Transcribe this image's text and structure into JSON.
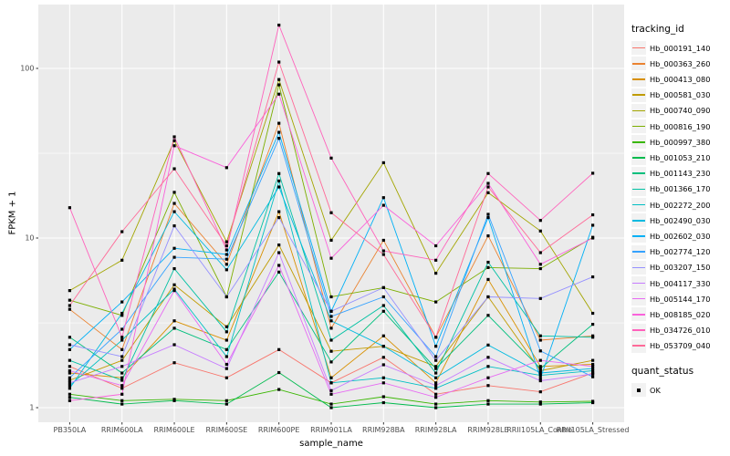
{
  "figure": {
    "ylabel": "FPKM + 1",
    "xlabel": "sample_name"
  },
  "legend": {
    "tracking_title": "tracking_id",
    "quant_title": "quant_status",
    "quant_ok_label": "OK",
    "key_bg": "#F2F2F2"
  },
  "chart_data": {
    "type": "line",
    "title": "",
    "xlabel": "sample_name",
    "ylabel": "FPKM + 1",
    "y_scale": "log10",
    "y_ticks": [
      1,
      10,
      100
    ],
    "y_minor": [
      3.16,
      31.6
    ],
    "ylim": [
      0.85,
      235
    ],
    "grid": "white-on-gray",
    "panel_bg": "#EBEBEB",
    "grid_color": "#FFFFFF",
    "point_color": "#000000",
    "point_shape": "square",
    "legend_position": "right",
    "legend_title": "tracking_id",
    "quant_status": {
      "title": "quant_status",
      "value": "OK"
    },
    "categories": [
      "PB350LA",
      "RRIM600LA",
      "RRIM600LE",
      "RRIM600SE",
      "RRIM600PE",
      "RRIM901LA",
      "RRIM928BA",
      "RRIM928LA",
      "RRIM928LE",
      "RRII105LA_Control",
      "RRII105LA_Stressed"
    ],
    "series": [
      {
        "name": "Hb_000191_140",
        "color": "#F8766D",
        "values": [
          1.75,
          1.3,
          1.84,
          1.5,
          2.2,
          1.4,
          1.98,
          1.2,
          1.35,
          1.24,
          1.6
        ]
      },
      {
        "name": "Hb_000363_260",
        "color": "#EA8331",
        "values": [
          3.8,
          2.2,
          16.0,
          7.0,
          47.5,
          2.94,
          9.7,
          2.6,
          10.3,
          2.5,
          2.65
        ]
      },
      {
        "name": "Hb_000413_080",
        "color": "#D89000",
        "values": [
          1.6,
          1.5,
          3.25,
          2.5,
          14.3,
          1.5,
          2.65,
          1.4,
          5.7,
          1.75,
          1.8
        ]
      },
      {
        "name": "Hb_000581_030",
        "color": "#C09B00",
        "values": [
          1.45,
          1.9,
          5.3,
          3.0,
          9.1,
          2.15,
          2.3,
          1.75,
          4.5,
          1.65,
          1.9
        ]
      },
      {
        "name": "Hb_000740_090",
        "color": "#A3A500",
        "values": [
          4.9,
          7.4,
          37.5,
          9.5,
          86.0,
          9.7,
          27.8,
          6.2,
          18.5,
          11.0,
          3.6
        ]
      },
      {
        "name": "Hb_000816_190",
        "color": "#7CAE00",
        "values": [
          4.3,
          3.5,
          18.6,
          4.5,
          80.0,
          4.5,
          5.1,
          4.2,
          6.7,
          6.6,
          10.1
        ]
      },
      {
        "name": "Hb_000997_380",
        "color": "#39B600",
        "values": [
          1.2,
          1.1,
          1.12,
          1.1,
          1.28,
          1.05,
          1.16,
          1.05,
          1.1,
          1.08,
          1.09
        ]
      },
      {
        "name": "Hb_001053_210",
        "color": "#00BB4E",
        "values": [
          1.15,
          1.05,
          1.1,
          1.05,
          1.61,
          1.0,
          1.07,
          1.0,
          1.05,
          1.05,
          1.07
        ]
      },
      {
        "name": "Hb_001143_230",
        "color": "#00BF7D",
        "values": [
          2.6,
          1.6,
          2.94,
          2.2,
          6.3,
          1.86,
          3.7,
          1.7,
          3.5,
          1.7,
          3.1
        ]
      },
      {
        "name": "Hb_001366_170",
        "color": "#00C1A3",
        "values": [
          1.9,
          1.45,
          6.6,
          2.8,
          24.0,
          2.5,
          4.0,
          1.6,
          7.2,
          2.65,
          2.6
        ]
      },
      {
        "name": "Hb_002272_200",
        "color": "#00BFC4",
        "values": [
          1.35,
          2.5,
          5.0,
          2.0,
          21.7,
          1.4,
          1.5,
          1.3,
          1.75,
          1.55,
          1.65
        ]
      },
      {
        "name": "Hb_002490_030",
        "color": "#00BAE0",
        "values": [
          1.3,
          3.6,
          14.3,
          6.5,
          20.0,
          3.25,
          2.3,
          1.5,
          2.34,
          1.6,
          1.7
        ]
      },
      {
        "name": "Hb_002602_030",
        "color": "#00B0F6",
        "values": [
          2.2,
          4.2,
          8.7,
          8.0,
          42.0,
          3.7,
          17.3,
          2.3,
          13.2,
          1.49,
          11.9
        ]
      },
      {
        "name": "Hb_002774_120",
        "color": "#35A2FF",
        "values": [
          1.5,
          2.9,
          7.7,
          7.5,
          38.7,
          3.45,
          4.5,
          2.0,
          13.8,
          2.16,
          1.52
        ]
      },
      {
        "name": "Hb_003207_150",
        "color": "#9590FF",
        "values": [
          2.35,
          2.0,
          11.8,
          4.5,
          13.2,
          3.7,
          5.1,
          1.9,
          4.5,
          4.4,
          5.9
        ]
      },
      {
        "name": "Hb_004117_330",
        "color": "#C77CFF",
        "values": [
          1.4,
          1.75,
          2.35,
          1.7,
          8.2,
          1.26,
          1.79,
          1.35,
          1.98,
          1.44,
          1.58
        ]
      },
      {
        "name": "Hb_005144_170",
        "color": "#E76BF3",
        "values": [
          1.65,
          1.35,
          4.9,
          1.8,
          6.9,
          1.2,
          1.4,
          1.15,
          1.5,
          1.9,
          1.75
        ]
      },
      {
        "name": "Hb_008185_020",
        "color": "#FA62DB",
        "values": [
          1.1,
          1.2,
          35.0,
          26.0,
          70.5,
          7.6,
          15.6,
          9.0,
          21.0,
          7.0,
          10.0
        ]
      },
      {
        "name": "Hb_034726_010",
        "color": "#FF62BC",
        "values": [
          15.1,
          2.6,
          39.5,
          8.5,
          180.0,
          29.6,
          8.4,
          7.4,
          24.0,
          12.7,
          24.1
        ]
      },
      {
        "name": "Hb_053709_040",
        "color": "#FF6A98",
        "values": [
          4.0,
          10.9,
          25.6,
          9.0,
          109.0,
          14.1,
          8.0,
          2.6,
          20.0,
          8.2,
          13.7
        ]
      }
    ]
  }
}
